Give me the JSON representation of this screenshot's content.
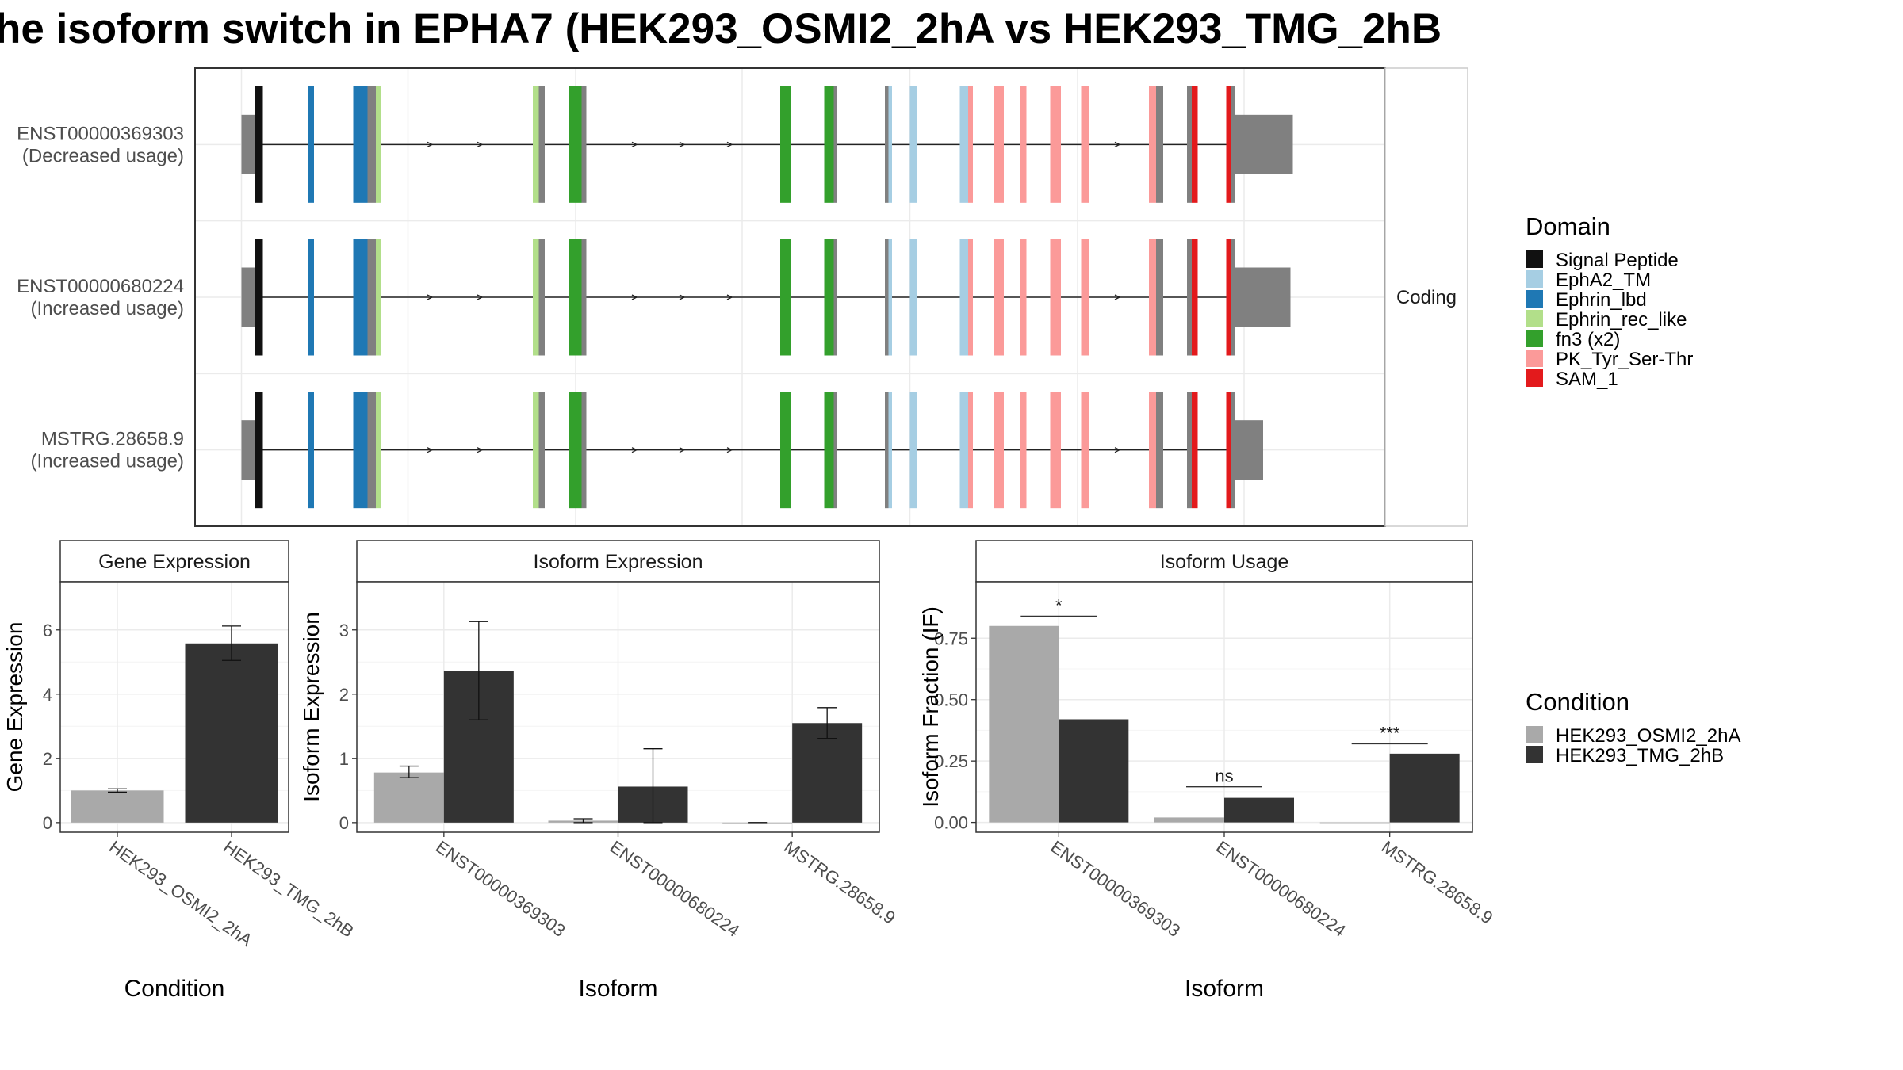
{
  "title": "he isoform switch in EPHA7 (HEK293_OSMI2_2hA vs HEK293_TMG_2hB",
  "colors": {
    "intron": "#222222",
    "utr": "#808080",
    "gray_exon": "#808080",
    "panel_border": "#333333",
    "grid": "#ebebeb",
    "strip_bg": "#ffffff",
    "condition_a": "#a9a9a9",
    "condition_b": "#333333"
  },
  "structure": {
    "facet_label": "Coding",
    "transcripts": [
      {
        "line1": "ENST00000369303",
        "line2": "(Decreased usage)",
        "utr3_end": 1087
      },
      {
        "line1": "ENST00000680224",
        "line2": "(Increased usage)",
        "utr3_end": 1085
      },
      {
        "line1": "MSTRG.28658.9",
        "line2": "(Increased usage)",
        "utr3_end": 1062
      }
    ],
    "exons": [
      {
        "start": 203,
        "end": 214,
        "domain": "utr"
      },
      {
        "start": 214,
        "end": 221,
        "domain": "Signal Peptide"
      },
      {
        "start": 259,
        "end": 264,
        "domain": "Ephrin_lbd"
      },
      {
        "start": 297,
        "end": 309,
        "domain": "Ephrin_lbd"
      },
      {
        "start": 309,
        "end": 316,
        "domain": "gray"
      },
      {
        "start": 316,
        "end": 320,
        "domain": "Ephrin_rec_like"
      },
      {
        "start": 448,
        "end": 453,
        "domain": "Ephrin_rec_like"
      },
      {
        "start": 453,
        "end": 458,
        "domain": "gray"
      },
      {
        "start": 478,
        "end": 489,
        "domain": "fn3 (x2)"
      },
      {
        "start": 489,
        "end": 493,
        "domain": "gray"
      },
      {
        "start": 656,
        "end": 665,
        "domain": "fn3 (x2)"
      },
      {
        "start": 693,
        "end": 701,
        "domain": "fn3 (x2)"
      },
      {
        "start": 701,
        "end": 704,
        "domain": "gray"
      },
      {
        "start": 744,
        "end": 747,
        "domain": "gray"
      },
      {
        "start": 747,
        "end": 750,
        "domain": "EphA2_TM"
      },
      {
        "start": 765,
        "end": 771,
        "domain": "EphA2_TM"
      },
      {
        "start": 807,
        "end": 814,
        "domain": "EphA2_TM"
      },
      {
        "start": 814,
        "end": 818,
        "domain": "PK_Tyr_Ser-Thr"
      },
      {
        "start": 836,
        "end": 844,
        "domain": "PK_Tyr_Ser-Thr"
      },
      {
        "start": 858,
        "end": 863,
        "domain": "PK_Tyr_Ser-Thr"
      },
      {
        "start": 883,
        "end": 892,
        "domain": "PK_Tyr_Ser-Thr"
      },
      {
        "start": 909,
        "end": 916,
        "domain": "PK_Tyr_Ser-Thr"
      },
      {
        "start": 966,
        "end": 972,
        "domain": "PK_Tyr_Ser-Thr"
      },
      {
        "start": 972,
        "end": 978,
        "domain": "gray"
      },
      {
        "start": 998,
        "end": 1002,
        "domain": "gray"
      },
      {
        "start": 1002,
        "end": 1007,
        "domain": "SAM_1"
      },
      {
        "start": 1031,
        "end": 1035,
        "domain": "SAM_1"
      },
      {
        "start": 1035,
        "end": 1038,
        "domain": "gray"
      }
    ],
    "arrows": [
      362,
      404,
      534,
      574,
      614,
      940
    ]
  },
  "legend_domain": {
    "title": "Domain",
    "items": [
      {
        "label": "Signal Peptide",
        "color": "#111111"
      },
      {
        "label": "EphA2_TM",
        "color": "#a6cee3"
      },
      {
        "label": "Ephrin_lbd",
        "color": "#1f78b4"
      },
      {
        "label": "Ephrin_rec_like",
        "color": "#b2df8a"
      },
      {
        "label": "fn3 (x2)",
        "color": "#33a02c"
      },
      {
        "label": "PK_Tyr_Ser-Thr",
        "color": "#fb9a99"
      },
      {
        "label": "SAM_1",
        "color": "#e31a1c"
      }
    ]
  },
  "legend_condition": {
    "title": "Condition",
    "items": [
      {
        "label": "HEK293_OSMI2_2hA",
        "color": "#a9a9a9"
      },
      {
        "label": "HEK293_TMG_2hB",
        "color": "#333333"
      }
    ]
  },
  "chart_data": [
    {
      "type": "bar",
      "panel_title": "Gene Expression",
      "xlabel": "Condition",
      "ylabel": "Gene Expression",
      "categories": [
        "HEK293_OSMI2_2hA",
        "HEK293_TMG_2hB"
      ],
      "values": [
        1.0,
        5.58
      ],
      "errors": [
        [
          0.95,
          1.05
        ],
        [
          5.05,
          6.12
        ]
      ],
      "ylim": [
        -0.3,
        7.5
      ],
      "yticks": [
        0,
        2,
        4,
        6
      ],
      "ytick_labels": [
        "0",
        "2",
        "4",
        "6"
      ]
    },
    {
      "type": "bar",
      "panel_title": "Isoform Expression",
      "xlabel": "Isoform",
      "ylabel": "Isoform Expression",
      "categories": [
        "ENST00000369303",
        "ENST00000680224",
        "MSTRG.28658.9"
      ],
      "series": [
        {
          "name": "HEK293_OSMI2_2hA",
          "values": [
            0.78,
            0.03,
            0.0
          ],
          "errors": [
            [
              0.7,
              0.88
            ],
            [
              0.0,
              0.06
            ],
            [
              0.0,
              0.0
            ]
          ]
        },
        {
          "name": "HEK293_TMG_2hB",
          "values": [
            2.36,
            0.56,
            1.55
          ],
          "errors": [
            [
              1.6,
              3.13
            ],
            [
              0.0,
              1.15
            ],
            [
              1.31,
              1.79
            ]
          ]
        }
      ],
      "ylim": [
        -0.15,
        3.75
      ],
      "yticks": [
        0,
        1,
        2,
        3
      ],
      "ytick_labels": [
        "0",
        "1",
        "2",
        "3"
      ]
    },
    {
      "type": "bar",
      "panel_title": "Isoform Usage",
      "xlabel": "Isoform",
      "ylabel": "Isoform Fraction (IF)",
      "categories": [
        "ENST00000369303",
        "ENST00000680224",
        "MSTRG.28658.9"
      ],
      "series": [
        {
          "name": "HEK293_OSMI2_2hA",
          "values": [
            0.8,
            0.02,
            0.0
          ]
        },
        {
          "name": "HEK293_TMG_2hB",
          "values": [
            0.42,
            0.1,
            0.28
          ]
        }
      ],
      "significance": [
        {
          "label": "*",
          "y": 0.84
        },
        {
          "label": "ns",
          "y": 0.145
        },
        {
          "label": "***",
          "y": 0.32
        }
      ],
      "ylim": [
        -0.04,
        0.98
      ],
      "yticks": [
        0,
        0.25,
        0.5,
        0.75
      ],
      "ytick_labels": [
        "0.00",
        "0.25",
        "0.50",
        "0.75"
      ]
    }
  ]
}
